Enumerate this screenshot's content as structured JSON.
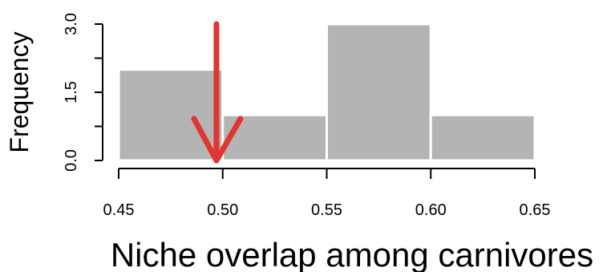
{
  "chart_data": {
    "type": "histogram",
    "title": "",
    "xlabel": "Niche overlap among carnivores",
    "ylabel": "Frequency",
    "bins": [
      {
        "start": 0.45,
        "end": 0.5,
        "value": 2
      },
      {
        "start": 0.5,
        "end": 0.55,
        "value": 1
      },
      {
        "start": 0.55,
        "end": 0.6,
        "value": 3
      },
      {
        "start": 0.6,
        "end": 0.65,
        "value": 1
      }
    ],
    "xlim": [
      0.45,
      0.65
    ],
    "ylim": [
      0,
      3
    ],
    "x_ticks": [
      0.45,
      0.5,
      0.55,
      0.6,
      0.65
    ],
    "x_tick_labels": [
      "0.45",
      "0.50",
      "0.55",
      "0.60",
      "0.65"
    ],
    "y_ticks": [
      0,
      1.5,
      3
    ],
    "y_tick_labels": [
      "0.0",
      "1.5",
      "3.0"
    ],
    "grid": false,
    "legend": "none",
    "colors": {
      "bar_fill": "#b3b5b5",
      "bar_stroke": "#ffffff",
      "axis": "#000000",
      "arrow": "#e3342f"
    },
    "annotation": {
      "type": "arrow",
      "x": 0.497,
      "y_from": 3,
      "y_to": 0
    }
  }
}
